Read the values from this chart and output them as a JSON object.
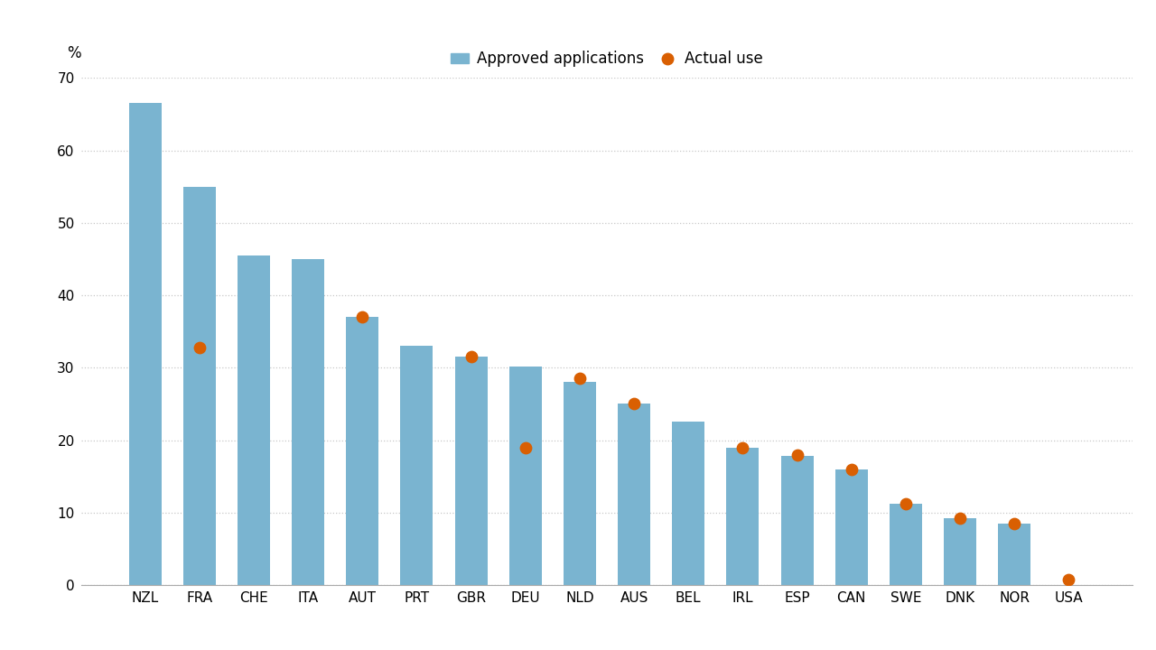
{
  "categories": [
    "NZL",
    "FRA",
    "CHE",
    "ITA",
    "AUT",
    "PRT",
    "GBR",
    "DEU",
    "NLD",
    "AUS",
    "BEL",
    "IRL",
    "ESP",
    "CAN",
    "SWE",
    "DNK",
    "NOR",
    "USA"
  ],
  "bar_values": [
    66.5,
    55.0,
    45.5,
    45.0,
    37.0,
    33.0,
    31.5,
    30.2,
    28.0,
    25.0,
    22.5,
    19.0,
    17.8,
    16.0,
    11.2,
    9.2,
    8.5,
    0.0
  ],
  "dot_values": [
    null,
    32.8,
    null,
    null,
    37.0,
    null,
    31.5,
    19.0,
    28.5,
    25.0,
    null,
    19.0,
    18.0,
    16.0,
    11.2,
    9.2,
    8.5,
    0.7
  ],
  "bar_color": "#7ab4d0",
  "dot_color": "#d95f02",
  "ylabel": "%",
  "ylim": [
    0,
    70
  ],
  "yticks": [
    0,
    10,
    20,
    30,
    40,
    50,
    60,
    70
  ],
  "legend_bar_label": "Approved applications",
  "legend_dot_label": "Actual use",
  "background_color": "#ffffff",
  "grid_color": "#c8c8c8",
  "axis_fontsize": 12,
  "tick_fontsize": 11
}
